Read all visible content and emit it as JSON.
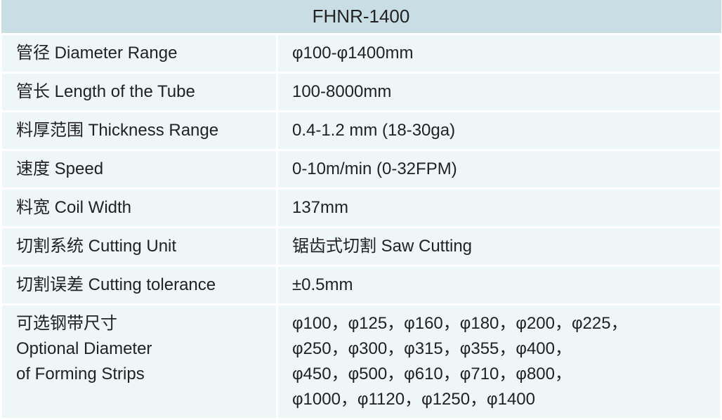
{
  "header": "FHNR-1400",
  "rows": [
    {
      "label": "管径 Diameter Range",
      "value": "φ100-φ1400mm"
    },
    {
      "label": "管长 Length of the Tube",
      "value": "100-8000mm"
    },
    {
      "label": "料厚范围 Thickness Range",
      "value": "0.4-1.2 mm (18-30ga)"
    },
    {
      "label": "速度 Speed",
      "value": "0-10m/min (0-32FPM)"
    },
    {
      "label": "料宽 Coil Width",
      "value": "137mm"
    },
    {
      "label": "切割系统 Cutting Unit",
      "value": "锯齿式切割 Saw Cutting"
    },
    {
      "label": "切割误差 Cutting tolerance",
      "value": "±0.5mm"
    }
  ],
  "last_row": {
    "label_lines": [
      "可选钢带尺寸",
      "Optional Diameter",
      "of Forming Strips"
    ],
    "value_lines": [
      "φ100，φ125，φ160，φ180，φ200，φ225，",
      "φ250，φ300，φ315，φ355，φ400，",
      "φ450，φ500，φ610，φ710，φ800，",
      "φ1000，φ1120，φ1250，φ1400"
    ]
  },
  "style": {
    "header_bg": "#c8dee4",
    "cell_bg": "#eef6f8",
    "border_color": "#ffffff",
    "text_color": "#222222",
    "font_size_body": 24,
    "font_size_header": 26
  }
}
